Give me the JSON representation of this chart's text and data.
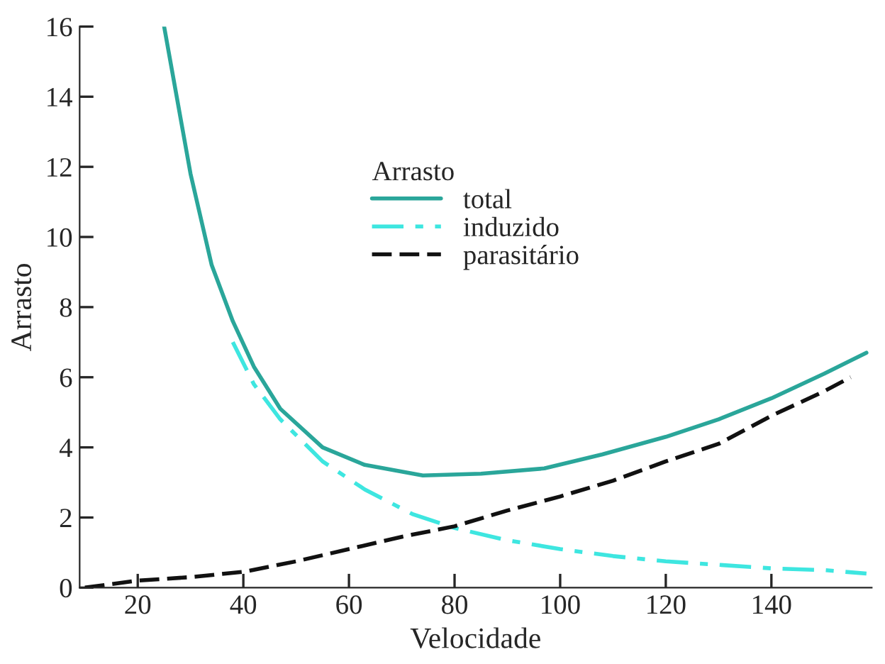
{
  "chart_data": {
    "type": "line",
    "xlabel": "Velocidade",
    "ylabel": "Arrasto",
    "legend_title": "Arrasto",
    "legend": "top center",
    "grid": false,
    "marker": "none",
    "xlim": [
      9,
      159
    ],
    "xticks": [
      20,
      40,
      60,
      80,
      100,
      120,
      140
    ],
    "ylim": [
      0,
      16
    ],
    "yticks": [
      0,
      2,
      4,
      6,
      8,
      10,
      12,
      14,
      16
    ],
    "series": [
      {
        "name": "total",
        "color": "#2aa69a",
        "line_style": "solid",
        "x": [
          25,
          30,
          34,
          38,
          42,
          47,
          55,
          63,
          74,
          85,
          97,
          108,
          120,
          130,
          140,
          150,
          158
        ],
        "values": [
          16,
          11.8,
          9.2,
          7.6,
          6.3,
          5.1,
          4.0,
          3.5,
          3.2,
          3.25,
          3.4,
          3.8,
          4.3,
          4.8,
          5.4,
          6.1,
          6.7
        ]
      },
      {
        "name": "induzido",
        "color": "#3ee6e0",
        "line_style": "dashdot",
        "x": [
          38,
          42,
          47,
          55,
          63,
          72,
          80,
          90,
          100,
          110,
          120,
          130,
          140,
          150,
          158
        ],
        "values": [
          7.0,
          5.8,
          4.8,
          3.6,
          2.8,
          2.1,
          1.7,
          1.35,
          1.1,
          0.9,
          0.75,
          0.65,
          0.55,
          0.5,
          0.4
        ]
      },
      {
        "name": "parasitário",
        "color": "#111111",
        "line_style": "dashed",
        "x": [
          10,
          20,
          30,
          40,
          50,
          60,
          70,
          80,
          90,
          100,
          110,
          120,
          130,
          140,
          150,
          155
        ],
        "values": [
          0,
          0.2,
          0.3,
          0.45,
          0.75,
          1.1,
          1.45,
          1.75,
          2.2,
          2.6,
          3.05,
          3.6,
          4.1,
          4.9,
          5.6,
          6.0
        ]
      }
    ]
  }
}
